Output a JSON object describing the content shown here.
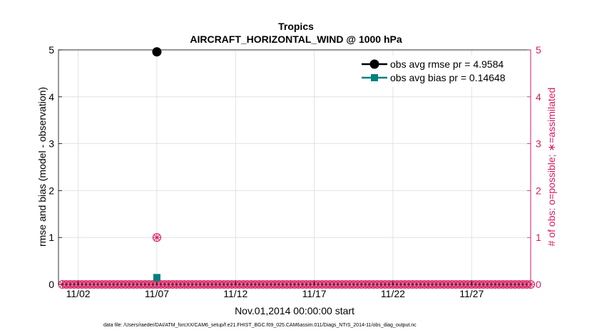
{
  "chart_data": {
    "type": "line",
    "title": "Tropics",
    "subtitle": "AIRCRAFT_HORIZONTAL_WIND @ 1000 hPa",
    "xlabel": "Nov.01,2014 00:00:00 start",
    "ylabel_left": "rmse and bias (model - observation)",
    "ylabel_right": "# of obs: o=possible; ∗=assimilated",
    "footer": "data file: /Users/raeder/DAI/ATM_forcXX/CAM6_setup/f.e21.FHIST_BGC.f09_025.CAM6assim.011/Diags_NTrS_2014-11/obs_diag_output.nc",
    "x_ticks": [
      {
        "label": "11/02",
        "day": 2
      },
      {
        "label": "11/07",
        "day": 7
      },
      {
        "label": "11/12",
        "day": 12
      },
      {
        "label": "11/17",
        "day": 17
      },
      {
        "label": "11/22",
        "day": 22
      },
      {
        "label": "11/27",
        "day": 27
      }
    ],
    "xlim": [
      0.75,
      30.75
    ],
    "ylim_left": [
      0,
      5
    ],
    "ylim_right": [
      0,
      5
    ],
    "y_ticks_left": [
      "0",
      "1",
      "2",
      "3",
      "4",
      "5"
    ],
    "y_ticks_right": [
      "0",
      "1",
      "2",
      "3",
      "4",
      "5"
    ],
    "grid": true,
    "legend_position": "top-right",
    "series": [
      {
        "name": "obs avg rmse pr = 4.9584",
        "axis": "left",
        "color": "#000000",
        "marker": "circle",
        "points": [
          {
            "day": 7,
            "value": 4.9584
          }
        ]
      },
      {
        "name": "obs avg bias pr = 0.14648",
        "axis": "left",
        "color": "#00807f",
        "marker": "square",
        "points": [
          {
            "day": 7,
            "value": 0.14648
          }
        ]
      }
    ],
    "obs_counts": {
      "axis": "right",
      "color": "#d81b60",
      "start_day": 1,
      "step_days": 0.25,
      "count": 120,
      "nonzero": [
        {
          "day": 7,
          "possible": 1,
          "assimilated": 1
        }
      ]
    }
  },
  "colors": {
    "left_axis": "#000000",
    "right_axis": "#d81b60",
    "grid": "#dcdcdc"
  }
}
